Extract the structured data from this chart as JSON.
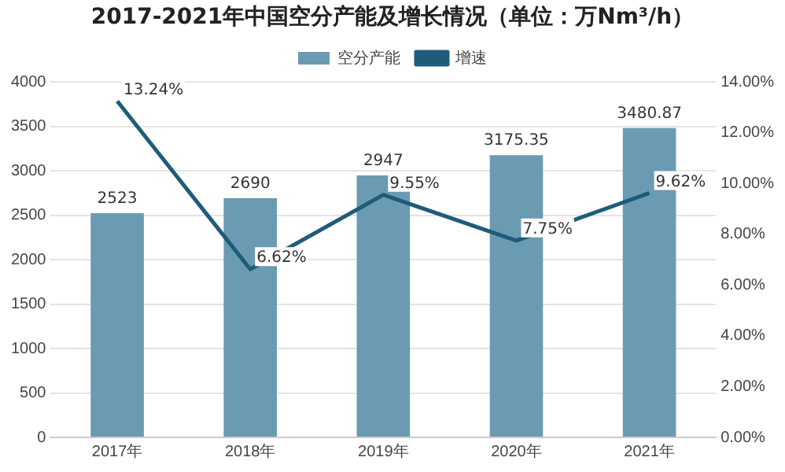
{
  "chart_data": {
    "type": "bar",
    "title": "2017-2021年中国空分产能及增长情况（单位：万Nm³/h）",
    "categories": [
      "2017年",
      "2018年",
      "2019年",
      "2020年",
      "2021年"
    ],
    "series": [
      {
        "name": "空分产能",
        "color": "#6b9bb2",
        "values": [
          2523,
          2690,
          2947,
          3175.35,
          3480.87
        ],
        "value_labels": [
          "2523",
          "2690",
          "2947",
          "3175.35",
          "3480.87"
        ]
      },
      {
        "name": "增速",
        "type": "line",
        "axis": "y2",
        "color": "#1f5c7a",
        "values": [
          13.24,
          6.62,
          9.55,
          7.75,
          9.62
        ],
        "value_labels": [
          "13.24%",
          "6.62%",
          "9.55%",
          "7.75%",
          "9.62%"
        ]
      }
    ],
    "ylim": [
      0,
      4000
    ],
    "yticks": [
      0,
      500,
      1000,
      1500,
      2000,
      2500,
      3000,
      3500,
      4000
    ],
    "y2lim": [
      0,
      14
    ],
    "y2ticks": [
      {
        "value": 0,
        "label": "0.00%"
      },
      {
        "value": 2,
        "label": "2.00%"
      },
      {
        "value": 4,
        "label": "4.00%"
      },
      {
        "value": 6,
        "label": "6.00%"
      },
      {
        "value": 8,
        "label": "8.00%"
      },
      {
        "value": 10,
        "label": "10.00%"
      },
      {
        "value": 12,
        "label": "12.00%"
      },
      {
        "value": 14,
        "label": "14.00%"
      }
    ],
    "grid": "y",
    "legend": "top",
    "marker": "none",
    "line_style": "solid"
  }
}
